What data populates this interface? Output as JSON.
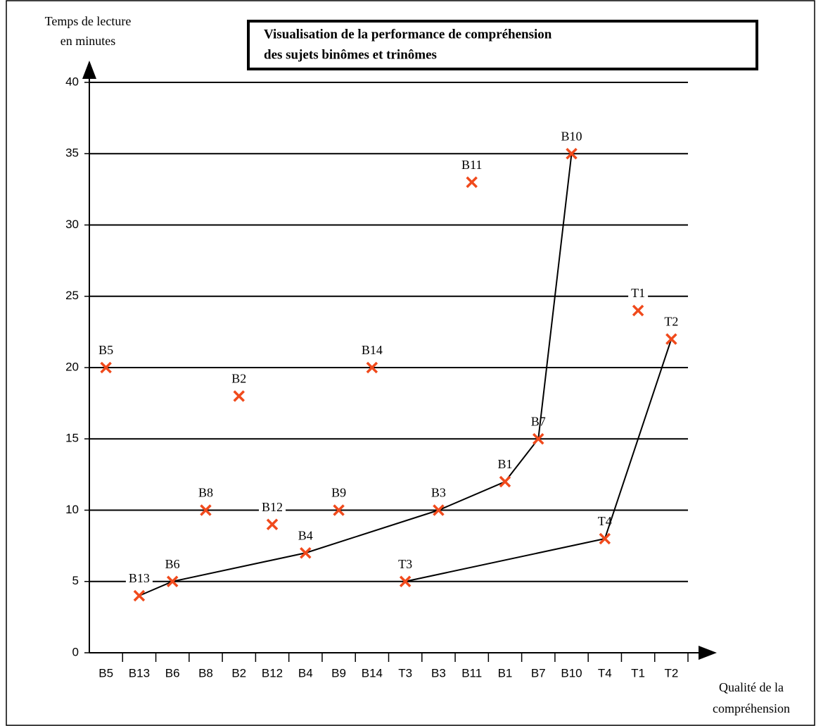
{
  "chart_data": {
    "type": "scatter",
    "title": [
      "Visualisation de la performance de compréhension",
      "des sujets binômes et trinômes"
    ],
    "y_label": [
      "Temps de lecture",
      "en minutes"
    ],
    "x_label": [
      "Qualité de la",
      "compréhension"
    ],
    "categories": [
      "B5",
      "B13",
      "B6",
      "B8",
      "B2",
      "B12",
      "B4",
      "B9",
      "B14",
      "T3",
      "B3",
      "B11",
      "B1",
      "B7",
      "B10",
      "T4",
      "T1",
      "T2"
    ],
    "values": [
      20,
      4,
      5,
      10,
      18,
      9,
      7,
      10,
      20,
      5,
      10,
      33,
      12,
      15,
      35,
      8,
      24,
      22
    ],
    "color": "#f04a1c",
    "connections": [
      [
        1,
        2,
        6,
        10,
        12,
        13,
        14
      ],
      [
        9,
        15,
        17
      ]
    ],
    "ylim": [
      0,
      40
    ],
    "yticks": [
      0,
      5,
      10,
      15,
      20,
      25,
      30,
      35,
      40
    ],
    "grid": true
  }
}
